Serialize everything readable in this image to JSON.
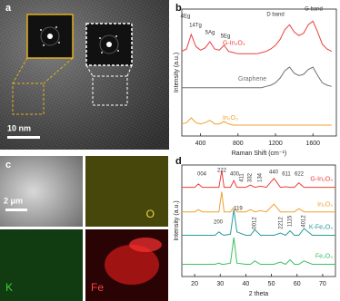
{
  "panel_labels": [
    "a",
    "b",
    "c",
    "d"
  ],
  "tem_scale_bar": "10 nm",
  "eds_scale_bar": "2 μm",
  "eds_maps": [
    "O",
    "K",
    "Fe"
  ],
  "chart_data": [
    {
      "type": "line",
      "x_label": "Raman Shift (cm⁻¹)",
      "y_label": "Intensity (a.u.)",
      "x": [
        200,
        250,
        300,
        350,
        400,
        450,
        500,
        550,
        600,
        650,
        700,
        750,
        800,
        850,
        900,
        950,
        1000,
        1050,
        1100,
        1150,
        1200,
        1250,
        1300,
        1350,
        1400,
        1450,
        1500,
        1550,
        1600,
        1650,
        1700,
        1750,
        1800
      ],
      "series": [
        {
          "name": "G-In₂O₃",
          "color": "#e8413c",
          "values": [
            70,
            72,
            84,
            74,
            71,
            73,
            78,
            72,
            71,
            75,
            70,
            69,
            68,
            68,
            68,
            68,
            68,
            69,
            70,
            72,
            75,
            80,
            88,
            92,
            86,
            83,
            85,
            92,
            95,
            86,
            76,
            72,
            70
          ]
        },
        {
          "name": "Graphene",
          "color": "#707070",
          "values": [
            40,
            40,
            40,
            40,
            40,
            40,
            40,
            40,
            40,
            40,
            40,
            40,
            40,
            40,
            40,
            40,
            40,
            40,
            41,
            42,
            44,
            48,
            54,
            57,
            52,
            50,
            51,
            55,
            57,
            50,
            44,
            42,
            41
          ]
        },
        {
          "name": "In₂O₃",
          "color": "#f0a030",
          "values": [
            10,
            11,
            15,
            11,
            10,
            11,
            13,
            10,
            10,
            12,
            10,
            9,
            9,
            9,
            9,
            9,
            9,
            9,
            9,
            9,
            9,
            9,
            9,
            9,
            9,
            9,
            9,
            9,
            9,
            9,
            9,
            9,
            9
          ]
        }
      ],
      "xlim": [
        200,
        1850
      ],
      "xticks": [
        400,
        800,
        1200,
        1600
      ],
      "ylim": [
        0,
        105
      ],
      "annotations": [
        "4Eg",
        "14Tg",
        "5Ag",
        "5Eg",
        "D band",
        "G band"
      ]
    },
    {
      "type": "line",
      "x_label": "2 theta",
      "y_label": "Intensity (a.u.)",
      "x": [
        15,
        20,
        21.5,
        23,
        28,
        29.5,
        30.6,
        31.5,
        34,
        35.3,
        36.5,
        40,
        41.8,
        43.5,
        45.7,
        48,
        51,
        53.5,
        55.5,
        57.3,
        59,
        60.7,
        62.7,
        66,
        70,
        75
      ],
      "series": [
        {
          "name": "G-In₂O₃",
          "color": "#e8413c",
          "values": [
            80,
            80,
            83,
            80,
            80,
            80,
            95,
            80,
            80,
            86,
            80,
            80,
            82,
            80,
            81,
            80,
            88,
            80,
            80.5,
            80,
            80,
            84,
            80,
            80,
            80,
            80
          ]
        },
        {
          "name": "In₂O₃",
          "color": "#f0a030",
          "values": [
            58,
            58,
            60,
            58,
            58,
            58,
            76,
            58,
            58,
            62,
            58,
            58,
            60,
            58,
            59,
            58,
            65,
            58,
            58,
            58,
            58,
            61,
            58,
            58,
            58,
            58
          ]
        },
        {
          "name": "K-Fe₂O₃",
          "color": "#2a9a9a",
          "values": [
            37,
            37,
            37,
            37,
            37,
            40,
            38,
            37,
            38,
            60,
            40,
            37,
            37,
            42,
            37,
            37,
            37,
            39,
            37,
            41,
            37,
            37,
            43,
            37,
            37,
            37
          ]
        },
        {
          "name": "Fe₂O₃",
          "color": "#3cc060",
          "values": [
            11,
            11,
            11,
            11,
            11,
            12,
            11,
            11,
            12,
            35,
            12,
            11,
            11,
            14,
            11,
            11,
            11,
            13,
            11,
            15,
            11,
            11,
            14,
            11,
            11,
            11
          ]
        }
      ],
      "xlim": [
        15,
        75
      ],
      "xticks": [
        20,
        30,
        40,
        50,
        60,
        70
      ],
      "ylim": [
        0,
        100
      ],
      "annotations": [
        "004",
        "222",
        "400",
        "411",
        "332",
        "134",
        "440",
        "611",
        "622",
        "200",
        "119",
        "0012",
        "2212",
        "1115",
        "4012"
      ]
    }
  ]
}
